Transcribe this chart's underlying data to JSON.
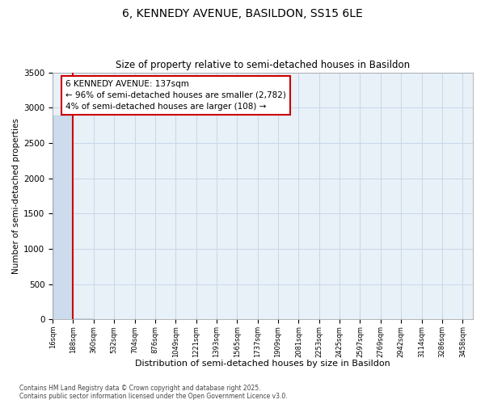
{
  "title1": "6, KENNEDY AVENUE, BASILDON, SS15 6LE",
  "title2": "Size of property relative to semi-detached houses in Basildon",
  "xlabel": "Distribution of semi-detached houses by size in Basildon",
  "ylabel": "Number of semi-detached properties",
  "annotation_title": "6 KENNEDY AVENUE: 137sqm",
  "annotation_line1": "← 96% of semi-detached houses are smaller (2,782)",
  "annotation_line2": "4% of semi-detached houses are larger (108) →",
  "footer": "Contains HM Land Registry data © Crown copyright and database right 2025.\nContains public sector information licensed under the Open Government Licence v3.0.",
  "property_size_bin_index": 1,
  "bar_color": "#ccdcec",
  "bar_edge_color": "#b0c8dc",
  "line_color": "#cc0000",
  "annotation_box_color": "#cc0000",
  "grid_color": "#c8d8e8",
  "background_color": "#e8f0f8",
  "ylim": [
    0,
    3500
  ],
  "yticks": [
    0,
    500,
    1000,
    1500,
    2000,
    2500,
    3000,
    3500
  ],
  "bins": [
    16,
    188,
    360,
    532,
    704,
    876,
    1049,
    1221,
    1393,
    1565,
    1737,
    1909,
    2081,
    2253,
    2425,
    2597,
    2769,
    2942,
    3114,
    3286,
    3458
  ],
  "bin_labels": [
    "16sqm",
    "188sqm",
    "360sqm",
    "532sqm",
    "704sqm",
    "876sqm",
    "1049sqm",
    "1221sqm",
    "1393sqm",
    "1565sqm",
    "1737sqm",
    "1909sqm",
    "2081sqm",
    "2253sqm",
    "2425sqm",
    "2597sqm",
    "2769sqm",
    "2942sqm",
    "3114sqm",
    "3286sqm",
    "3458sqm"
  ],
  "bar_heights": [
    2890,
    20,
    5,
    2,
    1,
    0,
    0,
    0,
    0,
    0,
    0,
    0,
    0,
    0,
    0,
    0,
    0,
    0,
    0,
    0
  ]
}
